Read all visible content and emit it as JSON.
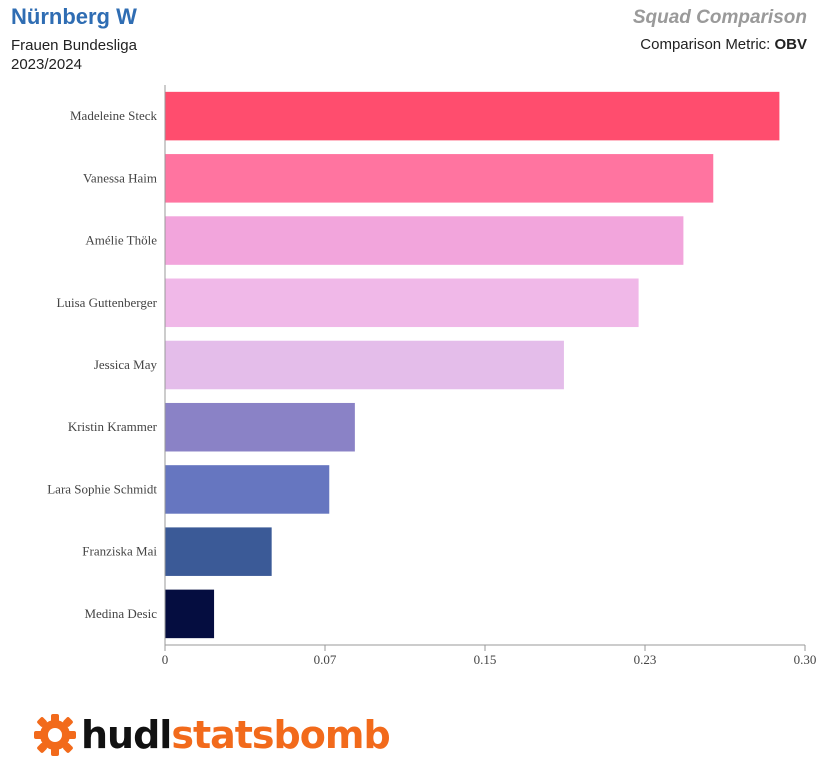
{
  "header": {
    "team": "Nürnberg W",
    "league": "Frauen Bundesliga",
    "season": "2023/2024",
    "report_title": "Squad Comparison",
    "metric_label": "Comparison Metric: ",
    "metric_value": "OBV"
  },
  "logo": {
    "icon": "statsbomb-gear-icon",
    "text_part1": "hudl",
    "text_part2": "statsbomb"
  },
  "colors": {
    "title_blue": "#2f6db3",
    "logo_orange": "#f26a1b",
    "axis": "#999999"
  },
  "chart_data": {
    "type": "bar",
    "orientation": "horizontal",
    "title": "",
    "xlabel": "",
    "ylabel": "",
    "xlim": [
      0,
      0.3
    ],
    "xticks": [
      {
        "value": 0,
        "label": "0"
      },
      {
        "value": 0.075,
        "label": "0.07"
      },
      {
        "value": 0.15,
        "label": "0.15"
      },
      {
        "value": 0.225,
        "label": "0.23"
      },
      {
        "value": 0.3,
        "label": "0.30"
      }
    ],
    "grid": false,
    "categories": [
      "Madeleine Steck",
      "Vanessa Haim",
      "Amélie Thöle",
      "Luisa Guttenberger",
      "Jessica May",
      "Kristin Krammer",
      "Lara Sophie Schmidt",
      "Franziska Mai",
      "Medina Desic"
    ],
    "values": [
      0.288,
      0.257,
      0.243,
      0.222,
      0.187,
      0.089,
      0.077,
      0.05,
      0.023
    ],
    "bar_colors": [
      "#ff4d6e",
      "#ff74a0",
      "#f2a5dc",
      "#f0b8e8",
      "#e4bdea",
      "#8a82c6",
      "#6676c0",
      "#3b5a97",
      "#050d40"
    ]
  }
}
